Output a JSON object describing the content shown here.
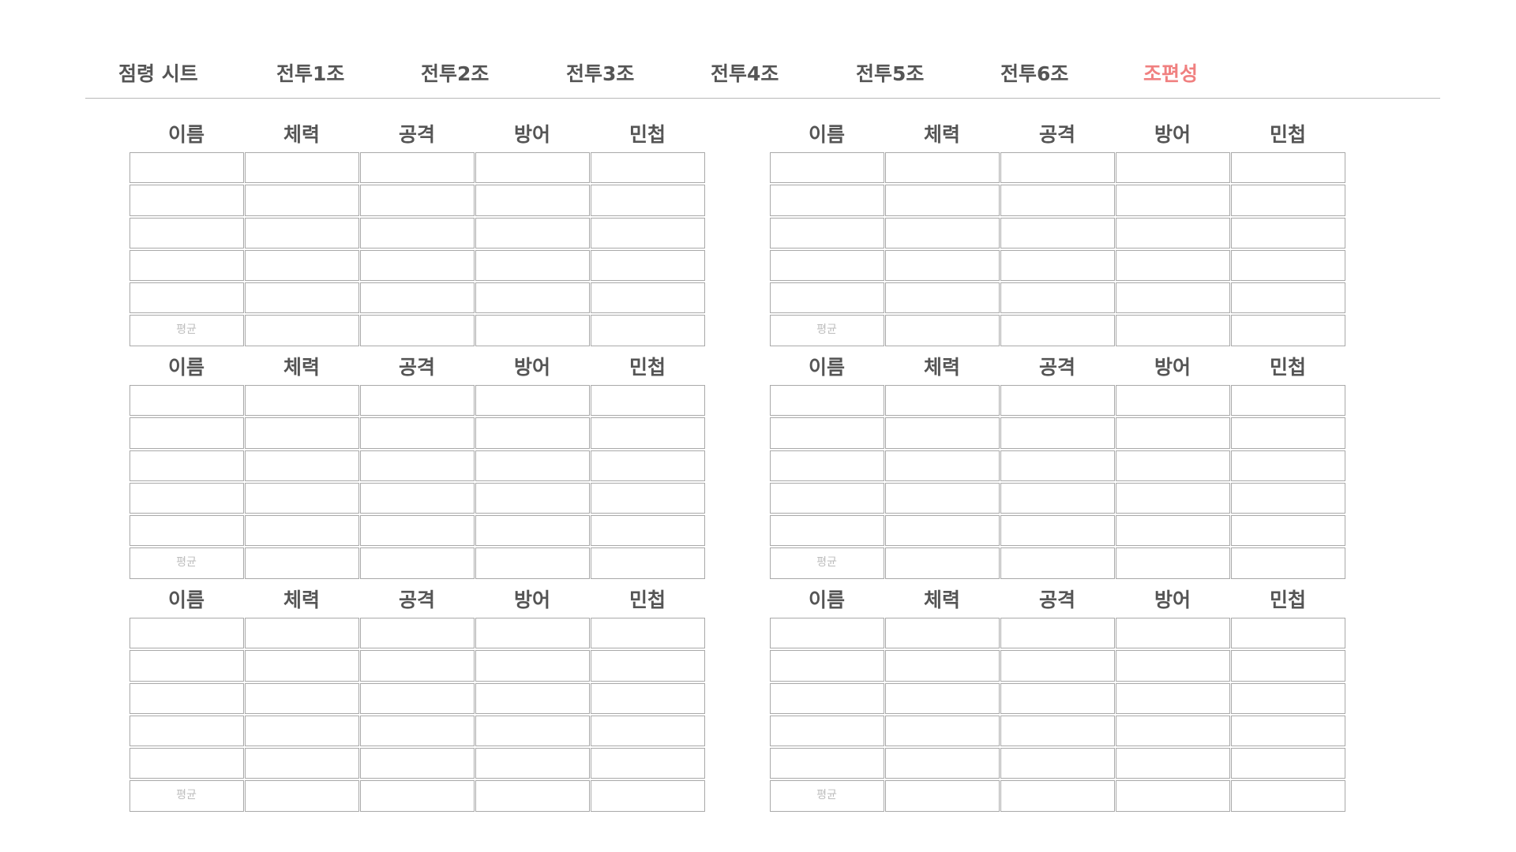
{
  "tabs": [
    {
      "label": "점령 시트",
      "active": false
    },
    {
      "label": "전투1조",
      "active": false
    },
    {
      "label": "전투2조",
      "active": false
    },
    {
      "label": "전투3조",
      "active": false
    },
    {
      "label": "전투4조",
      "active": false
    },
    {
      "label": "전투5조",
      "active": false
    },
    {
      "label": "전투6조",
      "active": false
    },
    {
      "label": "조편성",
      "active": true
    }
  ],
  "colors": {
    "active_tab": "#f08080",
    "tab_text": "#555555",
    "cell_border": "#a9a9a9",
    "avg_placeholder": "#bdbdbd"
  },
  "table": {
    "headers": [
      "이름",
      "체력",
      "공격",
      "방어",
      "민첩"
    ],
    "average_label": "평균",
    "member_rows": 5
  },
  "teams": [
    {
      "rows": [
        [
          "",
          "",
          "",
          "",
          ""
        ],
        [
          "",
          "",
          "",
          "",
          ""
        ],
        [
          "",
          "",
          "",
          "",
          ""
        ],
        [
          "",
          "",
          "",
          "",
          ""
        ],
        [
          "",
          "",
          "",
          "",
          ""
        ]
      ],
      "average": [
        "",
        "",
        "",
        ""
      ]
    },
    {
      "rows": [
        [
          "",
          "",
          "",
          "",
          ""
        ],
        [
          "",
          "",
          "",
          "",
          ""
        ],
        [
          "",
          "",
          "",
          "",
          ""
        ],
        [
          "",
          "",
          "",
          "",
          ""
        ],
        [
          "",
          "",
          "",
          "",
          ""
        ]
      ],
      "average": [
        "",
        "",
        "",
        ""
      ]
    },
    {
      "rows": [
        [
          "",
          "",
          "",
          "",
          ""
        ],
        [
          "",
          "",
          "",
          "",
          ""
        ],
        [
          "",
          "",
          "",
          "",
          ""
        ],
        [
          "",
          "",
          "",
          "",
          ""
        ],
        [
          "",
          "",
          "",
          "",
          ""
        ]
      ],
      "average": [
        "",
        "",
        "",
        ""
      ]
    },
    {
      "rows": [
        [
          "",
          "",
          "",
          "",
          ""
        ],
        [
          "",
          "",
          "",
          "",
          ""
        ],
        [
          "",
          "",
          "",
          "",
          ""
        ],
        [
          "",
          "",
          "",
          "",
          ""
        ],
        [
          "",
          "",
          "",
          "",
          ""
        ]
      ],
      "average": [
        "",
        "",
        "",
        ""
      ]
    },
    {
      "rows": [
        [
          "",
          "",
          "",
          "",
          ""
        ],
        [
          "",
          "",
          "",
          "",
          ""
        ],
        [
          "",
          "",
          "",
          "",
          ""
        ],
        [
          "",
          "",
          "",
          "",
          ""
        ],
        [
          "",
          "",
          "",
          "",
          ""
        ]
      ],
      "average": [
        "",
        "",
        "",
        ""
      ]
    },
    {
      "rows": [
        [
          "",
          "",
          "",
          "",
          ""
        ],
        [
          "",
          "",
          "",
          "",
          ""
        ],
        [
          "",
          "",
          "",
          "",
          ""
        ],
        [
          "",
          "",
          "",
          "",
          ""
        ],
        [
          "",
          "",
          "",
          "",
          ""
        ]
      ],
      "average": [
        "",
        "",
        "",
        ""
      ]
    }
  ]
}
